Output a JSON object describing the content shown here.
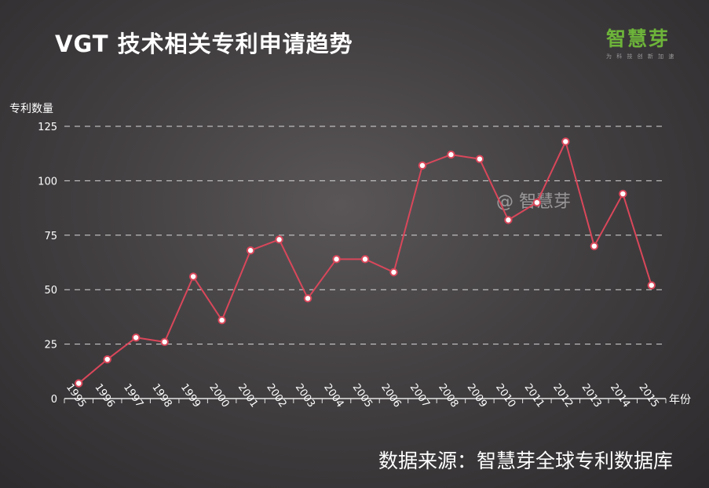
{
  "title": "VGT 技术相关专利申请趋势",
  "logo": {
    "name": "智慧芽",
    "tagline": "为 科 技 创 新 加 速"
  },
  "watermark": "@ 智慧芽",
  "source": "数据来源：智慧芽全球专利数据库",
  "colors": {
    "line": "#d9475a",
    "marker_fill": "#ffffff",
    "grid": "#d8d8d8",
    "logo": "#6db43a"
  },
  "chart_data": {
    "type": "line",
    "ylabel": "专利数量",
    "xlabel": "年份",
    "ylim": [
      0,
      125
    ],
    "yticks": [
      0,
      25,
      50,
      75,
      100,
      125
    ],
    "grid": true,
    "categories": [
      "1995",
      "1996",
      "1997",
      "1998",
      "1999",
      "2000",
      "2001",
      "2002",
      "2003",
      "2004",
      "2005",
      "2006",
      "2007",
      "2008",
      "2009",
      "2010",
      "2011",
      "2012",
      "2013",
      "2014",
      "2015"
    ],
    "values": [
      7,
      18,
      28,
      26,
      56,
      36,
      68,
      73,
      46,
      64,
      64,
      58,
      107,
      112,
      110,
      82,
      90,
      118,
      70,
      94,
      52
    ]
  }
}
